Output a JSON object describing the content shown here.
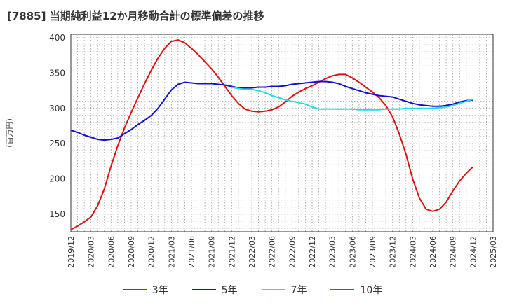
{
  "title": "[7885]  当期純利益12か月移動合計の標準偏差の推移",
  "chart_data": {
    "type": "line",
    "title": "[7885]  当期純利益12か月移動合計の標準偏差の推移",
    "ylabel": "(百万円)",
    "xlabel": "",
    "ylim": [
      125,
      405
    ],
    "yticks": [
      150,
      200,
      250,
      300,
      350,
      400
    ],
    "grid": true,
    "legend_position": "bottom",
    "xticks": [
      "2019/12",
      "2020/03",
      "2020/06",
      "2020/09",
      "2020/12",
      "2021/03",
      "2021/06",
      "2021/09",
      "2021/12",
      "2022/03",
      "2022/06",
      "2022/09",
      "2022/12",
      "2023/03",
      "2023/06",
      "2023/09",
      "2023/12",
      "2024/03",
      "2024/06",
      "2024/09",
      "2024/12",
      "2025/03"
    ],
    "series": [
      {
        "name": "3年",
        "color": "#dd1111",
        "points": [
          [
            "2019/12",
            128
          ],
          [
            "2020/01",
            133
          ],
          [
            "2020/02",
            139
          ],
          [
            "2020/03",
            146
          ],
          [
            "2020/04",
            162
          ],
          [
            "2020/05",
            186
          ],
          [
            "2020/06",
            218
          ],
          [
            "2020/07",
            247
          ],
          [
            "2020/08",
            272
          ],
          [
            "2020/09",
            294
          ],
          [
            "2020/10",
            315
          ],
          [
            "2020/11",
            335
          ],
          [
            "2020/12",
            354
          ],
          [
            "2021/01",
            371
          ],
          [
            "2021/02",
            385
          ],
          [
            "2021/03",
            395
          ],
          [
            "2021/04",
            397
          ],
          [
            "2021/05",
            393
          ],
          [
            "2021/06",
            385
          ],
          [
            "2021/07",
            376
          ],
          [
            "2021/08",
            366
          ],
          [
            "2021/09",
            356
          ],
          [
            "2021/10",
            344
          ],
          [
            "2021/11",
            331
          ],
          [
            "2021/12",
            318
          ],
          [
            "2022/01",
            307
          ],
          [
            "2022/02",
            299
          ],
          [
            "2022/03",
            296
          ],
          [
            "2022/04",
            295
          ],
          [
            "2022/05",
            296
          ],
          [
            "2022/06",
            298
          ],
          [
            "2022/07",
            302
          ],
          [
            "2022/08",
            309
          ],
          [
            "2022/09",
            317
          ],
          [
            "2022/10",
            323
          ],
          [
            "2022/11",
            328
          ],
          [
            "2022/12",
            332
          ],
          [
            "2023/01",
            337
          ],
          [
            "2023/02",
            342
          ],
          [
            "2023/03",
            346
          ],
          [
            "2023/04",
            348
          ],
          [
            "2023/05",
            348
          ],
          [
            "2023/06",
            343
          ],
          [
            "2023/07",
            337
          ],
          [
            "2023/08",
            330
          ],
          [
            "2023/09",
            323
          ],
          [
            "2023/10",
            315
          ],
          [
            "2023/11",
            304
          ],
          [
            "2023/12",
            288
          ],
          [
            "2024/01",
            264
          ],
          [
            "2024/02",
            235
          ],
          [
            "2024/03",
            200
          ],
          [
            "2024/04",
            173
          ],
          [
            "2024/05",
            157
          ],
          [
            "2024/06",
            154
          ],
          [
            "2024/07",
            157
          ],
          [
            "2024/08",
            167
          ],
          [
            "2024/09",
            183
          ],
          [
            "2024/10",
            197
          ],
          [
            "2024/11",
            208
          ],
          [
            "2024/12",
            217
          ]
        ]
      },
      {
        "name": "5年",
        "color": "#1111cc",
        "points": [
          [
            "2019/12",
            269
          ],
          [
            "2020/01",
            266
          ],
          [
            "2020/02",
            262
          ],
          [
            "2020/03",
            259
          ],
          [
            "2020/04",
            256
          ],
          [
            "2020/05",
            255
          ],
          [
            "2020/06",
            256
          ],
          [
            "2020/07",
            258
          ],
          [
            "2020/08",
            264
          ],
          [
            "2020/09",
            270
          ],
          [
            "2020/10",
            277
          ],
          [
            "2020/11",
            283
          ],
          [
            "2020/12",
            290
          ],
          [
            "2021/01",
            300
          ],
          [
            "2021/02",
            313
          ],
          [
            "2021/03",
            326
          ],
          [
            "2021/04",
            334
          ],
          [
            "2021/05",
            337
          ],
          [
            "2021/06",
            336
          ],
          [
            "2021/07",
            335
          ],
          [
            "2021/08",
            335
          ],
          [
            "2021/09",
            335
          ],
          [
            "2021/10",
            334
          ],
          [
            "2021/11",
            333
          ],
          [
            "2021/12",
            331
          ],
          [
            "2022/01",
            329
          ],
          [
            "2022/02",
            329
          ],
          [
            "2022/03",
            329
          ],
          [
            "2022/04",
            330
          ],
          [
            "2022/05",
            330
          ],
          [
            "2022/06",
            331
          ],
          [
            "2022/07",
            331
          ],
          [
            "2022/08",
            332
          ],
          [
            "2022/09",
            334
          ],
          [
            "2022/10",
            335
          ],
          [
            "2022/11",
            336
          ],
          [
            "2022/12",
            337
          ],
          [
            "2023/01",
            338
          ],
          [
            "2023/02",
            338
          ],
          [
            "2023/03",
            337
          ],
          [
            "2023/04",
            335
          ],
          [
            "2023/05",
            331
          ],
          [
            "2023/06",
            328
          ],
          [
            "2023/07",
            325
          ],
          [
            "2023/08",
            322
          ],
          [
            "2023/09",
            320
          ],
          [
            "2023/10",
            318
          ],
          [
            "2023/11",
            317
          ],
          [
            "2023/12",
            316
          ],
          [
            "2024/01",
            313
          ],
          [
            "2024/02",
            310
          ],
          [
            "2024/03",
            307
          ],
          [
            "2024/04",
            305
          ],
          [
            "2024/05",
            304
          ],
          [
            "2024/06",
            303
          ],
          [
            "2024/07",
            303
          ],
          [
            "2024/08",
            304
          ],
          [
            "2024/09",
            306
          ],
          [
            "2024/10",
            309
          ],
          [
            "2024/11",
            311
          ],
          [
            "2024/12",
            312
          ]
        ]
      },
      {
        "name": "7年",
        "color": "#22e0e0",
        "points": [
          [
            "2021/12",
            330
          ],
          [
            "2022/01",
            328
          ],
          [
            "2022/02",
            327
          ],
          [
            "2022/03",
            327
          ],
          [
            "2022/04",
            325
          ],
          [
            "2022/05",
            322
          ],
          [
            "2022/06",
            318
          ],
          [
            "2022/07",
            315
          ],
          [
            "2022/08",
            312
          ],
          [
            "2022/09",
            310
          ],
          [
            "2022/10",
            308
          ],
          [
            "2022/11",
            306
          ],
          [
            "2022/12",
            302
          ],
          [
            "2023/01",
            299
          ],
          [
            "2023/02",
            299
          ],
          [
            "2023/03",
            299
          ],
          [
            "2023/04",
            299
          ],
          [
            "2023/05",
            299
          ],
          [
            "2023/06",
            299
          ],
          [
            "2023/07",
            298
          ],
          [
            "2023/08",
            298
          ],
          [
            "2023/09",
            298
          ],
          [
            "2023/10",
            298
          ],
          [
            "2023/11",
            299
          ],
          [
            "2023/12",
            299
          ],
          [
            "2024/01",
            299
          ],
          [
            "2024/02",
            300
          ],
          [
            "2024/03",
            300
          ],
          [
            "2024/04",
            300
          ],
          [
            "2024/05",
            300
          ],
          [
            "2024/06",
            300
          ],
          [
            "2024/07",
            301
          ],
          [
            "2024/08",
            302
          ],
          [
            "2024/09",
            304
          ],
          [
            "2024/10",
            307
          ],
          [
            "2024/11",
            310
          ],
          [
            "2024/12",
            313
          ]
        ]
      },
      {
        "name": "10年",
        "color": "#228822",
        "points": []
      }
    ]
  }
}
